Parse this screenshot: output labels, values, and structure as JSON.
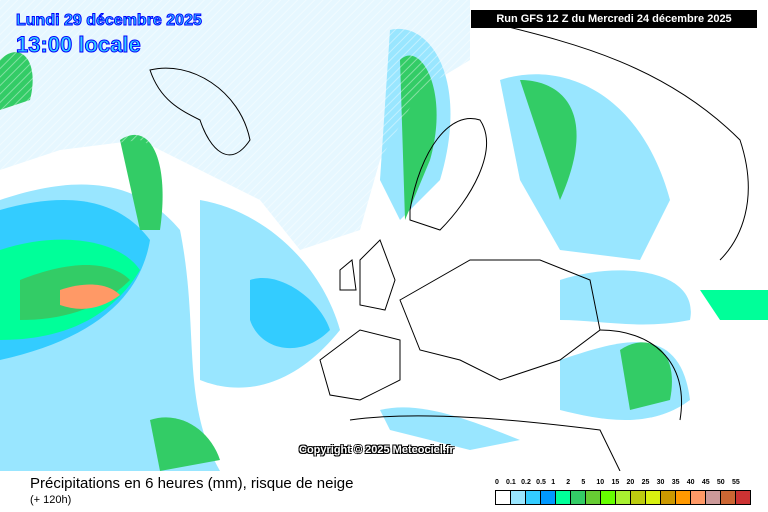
{
  "header": {
    "date": "Lundi 29 décembre 2025",
    "time": "13:00 locale",
    "run": "Run GFS 12 Z du Mercredi 24 décembre 2025"
  },
  "copyright": "Copyright © 2025 Meteociel.fr",
  "footer": {
    "title": "Précipitations en 6 heures (mm), risque de neige",
    "lead": "(+ 120h)"
  },
  "legend": {
    "labels": [
      "0",
      "0.1",
      "0.2",
      "0.5",
      "1",
      "2",
      "5",
      "10",
      "15",
      "20",
      "25",
      "30",
      "35",
      "40",
      "45",
      "50",
      "55"
    ],
    "colors": [
      "#ffffff",
      "#99e6ff",
      "#33ccff",
      "#0099ff",
      "#00ff99",
      "#33cc66",
      "#66cc33",
      "#66ff00",
      "#a8f030",
      "#bccc10",
      "#d8f010",
      "#cc9900",
      "#ff9900",
      "#ff9966",
      "#cc9999",
      "#cc6633",
      "#cc3333"
    ]
  }
}
